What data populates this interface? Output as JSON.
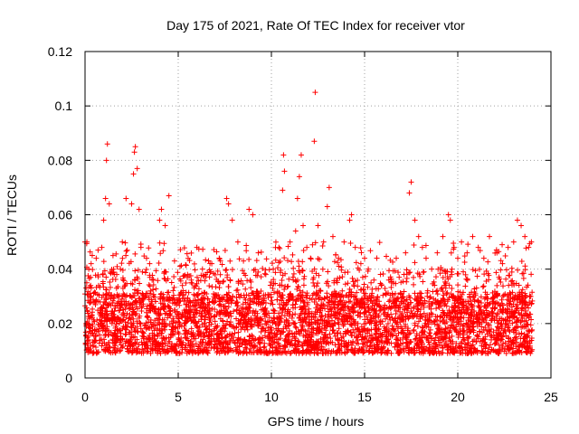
{
  "chart_data": {
    "type": "scatter",
    "title": "Day 175 of 2021, Rate Of TEC Index for receiver vtor",
    "xlabel": "GPS time / hours",
    "ylabel": "ROTI / TECUs",
    "xlim": [
      0,
      25
    ],
    "ylim": [
      0,
      0.12
    ],
    "x_ticks": [
      "0",
      "5",
      "10",
      "15",
      "20",
      "25"
    ],
    "y_ticks": [
      "0",
      "0.02",
      "0.04",
      "0.06",
      "0.08",
      "0.1",
      "0.12"
    ],
    "grid": true,
    "marker": "plus",
    "series": [
      {
        "color": "#ff0000",
        "points": [
          [
            0.0,
            0.05
          ],
          [
            0.1,
            0.05
          ],
          [
            0.2,
            0.04
          ],
          [
            0.3,
            0.034
          ],
          [
            0.5,
            0.028
          ],
          [
            0.6,
            0.044
          ],
          [
            0.7,
            0.047
          ],
          [
            0.9,
            0.048
          ],
          [
            1.0,
            0.058
          ],
          [
            1.1,
            0.066
          ],
          [
            1.15,
            0.08
          ],
          [
            1.2,
            0.086
          ],
          [
            1.3,
            0.064
          ],
          [
            1.5,
            0.045
          ],
          [
            1.7,
            0.038
          ],
          [
            1.9,
            0.04
          ],
          [
            2.0,
            0.05
          ],
          [
            2.2,
            0.066
          ],
          [
            2.5,
            0.064
          ],
          [
            2.6,
            0.075
          ],
          [
            2.65,
            0.083
          ],
          [
            2.7,
            0.085
          ],
          [
            2.8,
            0.077
          ],
          [
            2.9,
            0.062
          ],
          [
            3.0,
            0.048
          ],
          [
            3.3,
            0.044
          ],
          [
            3.6,
            0.036
          ],
          [
            4.0,
            0.058
          ],
          [
            4.1,
            0.062
          ],
          [
            4.3,
            0.056
          ],
          [
            4.5,
            0.067
          ],
          [
            4.8,
            0.043
          ],
          [
            5.1,
            0.041
          ],
          [
            5.5,
            0.038
          ],
          [
            5.7,
            0.036
          ],
          [
            6.0,
            0.048
          ],
          [
            6.3,
            0.04
          ],
          [
            6.8,
            0.042
          ],
          [
            7.2,
            0.044
          ],
          [
            7.6,
            0.066
          ],
          [
            7.7,
            0.064
          ],
          [
            7.9,
            0.058
          ],
          [
            8.2,
            0.05
          ],
          [
            8.5,
            0.043
          ],
          [
            8.8,
            0.062
          ],
          [
            9.0,
            0.06
          ],
          [
            9.3,
            0.046
          ],
          [
            9.7,
            0.038
          ],
          [
            10.1,
            0.04
          ],
          [
            10.4,
            0.048
          ],
          [
            10.6,
            0.069
          ],
          [
            10.65,
            0.082
          ],
          [
            10.7,
            0.076
          ],
          [
            11.0,
            0.05
          ],
          [
            11.3,
            0.054
          ],
          [
            11.4,
            0.066
          ],
          [
            11.5,
            0.074
          ],
          [
            11.6,
            0.082
          ],
          [
            11.7,
            0.056
          ],
          [
            11.9,
            0.048
          ],
          [
            12.1,
            0.044
          ],
          [
            12.3,
            0.087
          ],
          [
            12.35,
            0.105
          ],
          [
            12.5,
            0.056
          ],
          [
            12.8,
            0.05
          ],
          [
            13.0,
            0.063
          ],
          [
            13.1,
            0.07
          ],
          [
            13.3,
            0.052
          ],
          [
            13.6,
            0.044
          ],
          [
            13.9,
            0.05
          ],
          [
            14.2,
            0.058
          ],
          [
            14.3,
            0.06
          ],
          [
            14.5,
            0.048
          ],
          [
            14.8,
            0.042
          ],
          [
            15.0,
            0.044
          ],
          [
            15.2,
            0.04
          ],
          [
            15.5,
            0.036
          ],
          [
            15.9,
            0.034
          ],
          [
            16.3,
            0.036
          ],
          [
            16.7,
            0.044
          ],
          [
            17.2,
            0.046
          ],
          [
            17.4,
            0.068
          ],
          [
            17.5,
            0.072
          ],
          [
            17.7,
            0.058
          ],
          [
            17.9,
            0.052
          ],
          [
            18.1,
            0.048
          ],
          [
            18.3,
            0.044
          ],
          [
            18.6,
            0.04
          ],
          [
            18.9,
            0.046
          ],
          [
            19.2,
            0.052
          ],
          [
            19.5,
            0.06
          ],
          [
            19.6,
            0.058
          ],
          [
            19.8,
            0.048
          ],
          [
            20.0,
            0.044
          ],
          [
            20.2,
            0.05
          ],
          [
            20.5,
            0.046
          ],
          [
            20.8,
            0.052
          ],
          [
            21.1,
            0.048
          ],
          [
            21.4,
            0.044
          ],
          [
            21.7,
            0.052
          ],
          [
            22.1,
            0.046
          ],
          [
            22.4,
            0.042
          ],
          [
            22.7,
            0.048
          ],
          [
            23.0,
            0.05
          ],
          [
            23.2,
            0.058
          ],
          [
            23.4,
            0.056
          ],
          [
            23.6,
            0.052
          ],
          [
            23.8,
            0.048
          ],
          [
            23.95,
            0.05
          ]
        ],
        "cloud": {
          "x_range": [
            0,
            24
          ],
          "baseline_low": 0.005,
          "baseline_high": 0.035,
          "note_count": 0
        }
      }
    ]
  }
}
